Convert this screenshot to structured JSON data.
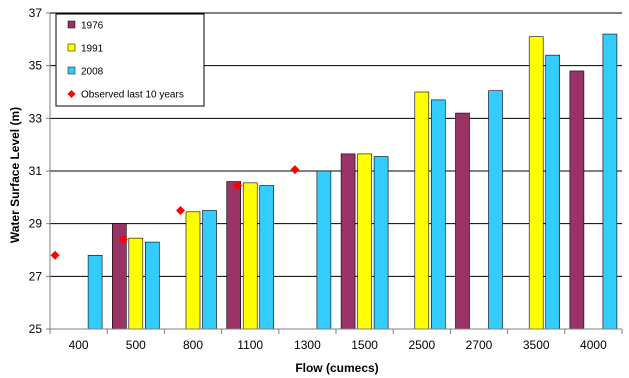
{
  "chart_data": {
    "type": "bar",
    "title": "",
    "xlabel": "Flow (cumecs)",
    "ylabel": "Water Surface Level (m)",
    "categories": [
      "400",
      "500",
      "800",
      "1100",
      "1300",
      "1500",
      "2500",
      "2700",
      "3500",
      "4000"
    ],
    "ylim": [
      25,
      37
    ],
    "yticks": [
      25,
      27,
      29,
      31,
      33,
      35,
      37
    ],
    "grid": true,
    "legend_position": "top-left",
    "series": [
      {
        "name": "1976",
        "color": "#993366",
        "values": [
          null,
          29.0,
          null,
          30.6,
          null,
          31.65,
          null,
          33.2,
          null,
          34.8
        ]
      },
      {
        "name": "1991",
        "color": "#ffff00",
        "values": [
          null,
          28.45,
          29.45,
          30.55,
          null,
          31.65,
          34.0,
          null,
          36.1,
          null
        ]
      },
      {
        "name": "2008",
        "color": "#33ccff",
        "values": [
          27.8,
          28.3,
          29.5,
          30.45,
          31.0,
          31.55,
          33.7,
          34.05,
          35.4,
          36.2
        ]
      }
    ],
    "observed": {
      "name": "Observed last 10 years",
      "color": "#ff0000",
      "marker": "diamond",
      "values": [
        27.8,
        28.4,
        29.5,
        30.45,
        31.05,
        null,
        null,
        null,
        null,
        null
      ]
    }
  }
}
